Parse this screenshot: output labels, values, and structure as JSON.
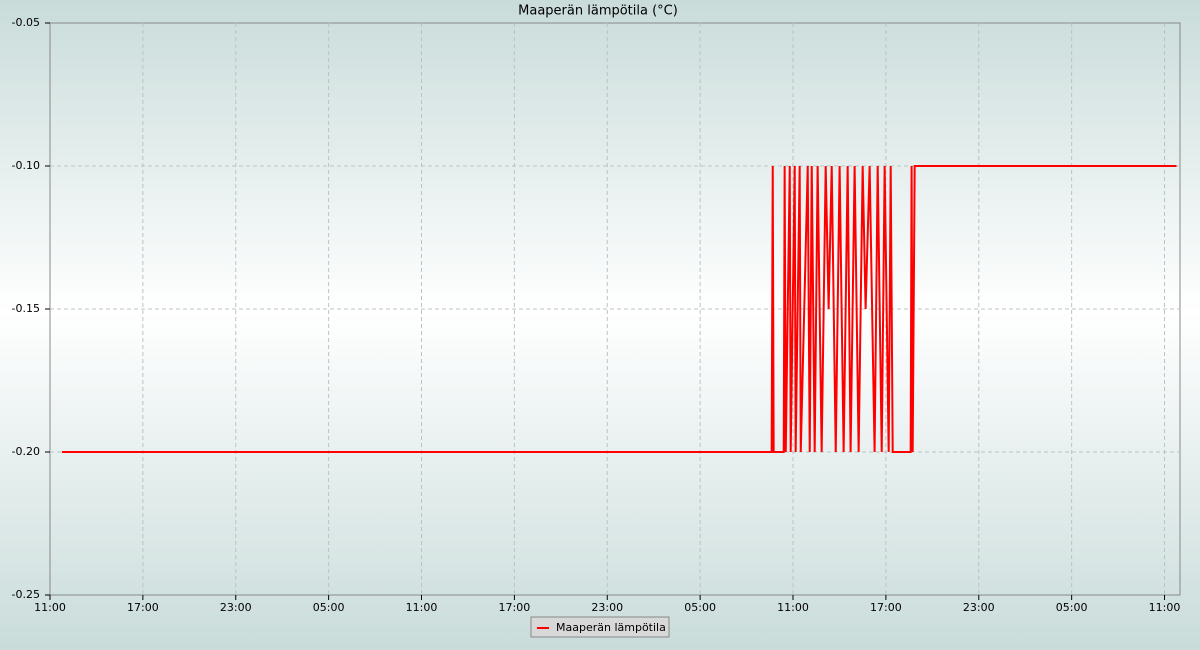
{
  "chart_data": {
    "type": "line",
    "title": "Maaperän lämpötila (°C)",
    "x": [
      0.77,
      46.62,
      46.69,
      46.75,
      47.4,
      47.46,
      47.53,
      47.79,
      47.85,
      48.11,
      48.17,
      48.43,
      48.5,
      48.95,
      49.08,
      49.21,
      49.4,
      49.59,
      49.85,
      50.11,
      50.3,
      50.5,
      50.76,
      51.01,
      51.27,
      51.53,
      51.72,
      51.98,
      52.24,
      52.5,
      52.69,
      52.95,
      53.27,
      53.47,
      53.73,
      53.92,
      54.18,
      54.31,
      54.44,
      55.6,
      55.66,
      55.73,
      55.86,
      72.78
    ],
    "series": [
      {
        "name": "Maaperän lämpötila",
        "color": "#ff0000",
        "values": [
          -0.2,
          -0.2,
          -0.1,
          -0.2,
          -0.2,
          -0.1,
          -0.2,
          -0.1,
          -0.2,
          -0.1,
          -0.2,
          -0.1,
          -0.2,
          -0.1,
          -0.2,
          -0.1,
          -0.2,
          -0.1,
          -0.2,
          -0.1,
          -0.15,
          -0.1,
          -0.2,
          -0.1,
          -0.2,
          -0.1,
          -0.2,
          -0.1,
          -0.2,
          -0.1,
          -0.15,
          -0.1,
          -0.2,
          -0.1,
          -0.2,
          -0.1,
          -0.2,
          -0.1,
          -0.2,
          -0.2,
          -0.1,
          -0.2,
          -0.1,
          -0.1
        ]
      }
    ],
    "xlim": [
      0,
      73
    ],
    "xticks": [
      {
        "value": 0,
        "label": "11:00"
      },
      {
        "value": 6,
        "label": "17:00"
      },
      {
        "value": 12,
        "label": "23:00"
      },
      {
        "value": 18,
        "label": "05:00"
      },
      {
        "value": 24,
        "label": "11:00"
      },
      {
        "value": 30,
        "label": "17:00"
      },
      {
        "value": 36,
        "label": "23:00"
      },
      {
        "value": 42,
        "label": "05:00"
      },
      {
        "value": 48,
        "label": "11:00"
      },
      {
        "value": 54,
        "label": "17:00"
      },
      {
        "value": 60,
        "label": "23:00"
      },
      {
        "value": 66,
        "label": "05:00"
      },
      {
        "value": 72,
        "label": "11:00"
      }
    ],
    "ylim": [
      -0.25,
      -0.05
    ],
    "yticks": [
      {
        "value": -0.25,
        "label": "-0.25"
      },
      {
        "value": -0.2,
        "label": "-0.20"
      },
      {
        "value": -0.15,
        "label": "-0.15"
      },
      {
        "value": -0.1,
        "label": "-0.10"
      },
      {
        "value": -0.05,
        "label": "-0.05"
      }
    ],
    "grid": true,
    "legend": "bottom"
  }
}
